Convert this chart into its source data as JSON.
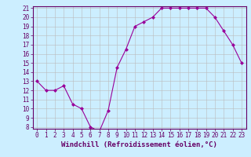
{
  "xlabel": "Windchill (Refroidissement éolien,°C)",
  "x": [
    0,
    1,
    2,
    3,
    4,
    5,
    6,
    7,
    8,
    9,
    10,
    11,
    12,
    13,
    14,
    15,
    16,
    17,
    18,
    19,
    20,
    21,
    22,
    23
  ],
  "y": [
    13,
    12,
    12,
    12.5,
    10.5,
    10,
    8,
    7.5,
    9.8,
    14.5,
    16.5,
    19,
    19.5,
    20,
    21,
    21,
    21,
    21,
    21,
    21,
    20,
    18.5,
    17,
    15
  ],
  "line_color": "#990099",
  "marker": "D",
  "marker_size": 2,
  "bg_color": "#cceeff",
  "grid_color": "#bbbbbb",
  "ylim": [
    8,
    21
  ],
  "xlim": [
    -0.5,
    23.5
  ],
  "yticks": [
    8,
    9,
    10,
    11,
    12,
    13,
    14,
    15,
    16,
    17,
    18,
    19,
    20,
    21
  ],
  "xticks": [
    0,
    1,
    2,
    3,
    4,
    5,
    6,
    7,
    8,
    9,
    10,
    11,
    12,
    13,
    14,
    15,
    16,
    17,
    18,
    19,
    20,
    21,
    22,
    23
  ],
  "tick_fontsize": 5.5,
  "xlabel_fontsize": 6.5,
  "spine_color": "#660066",
  "label_color": "#660066"
}
